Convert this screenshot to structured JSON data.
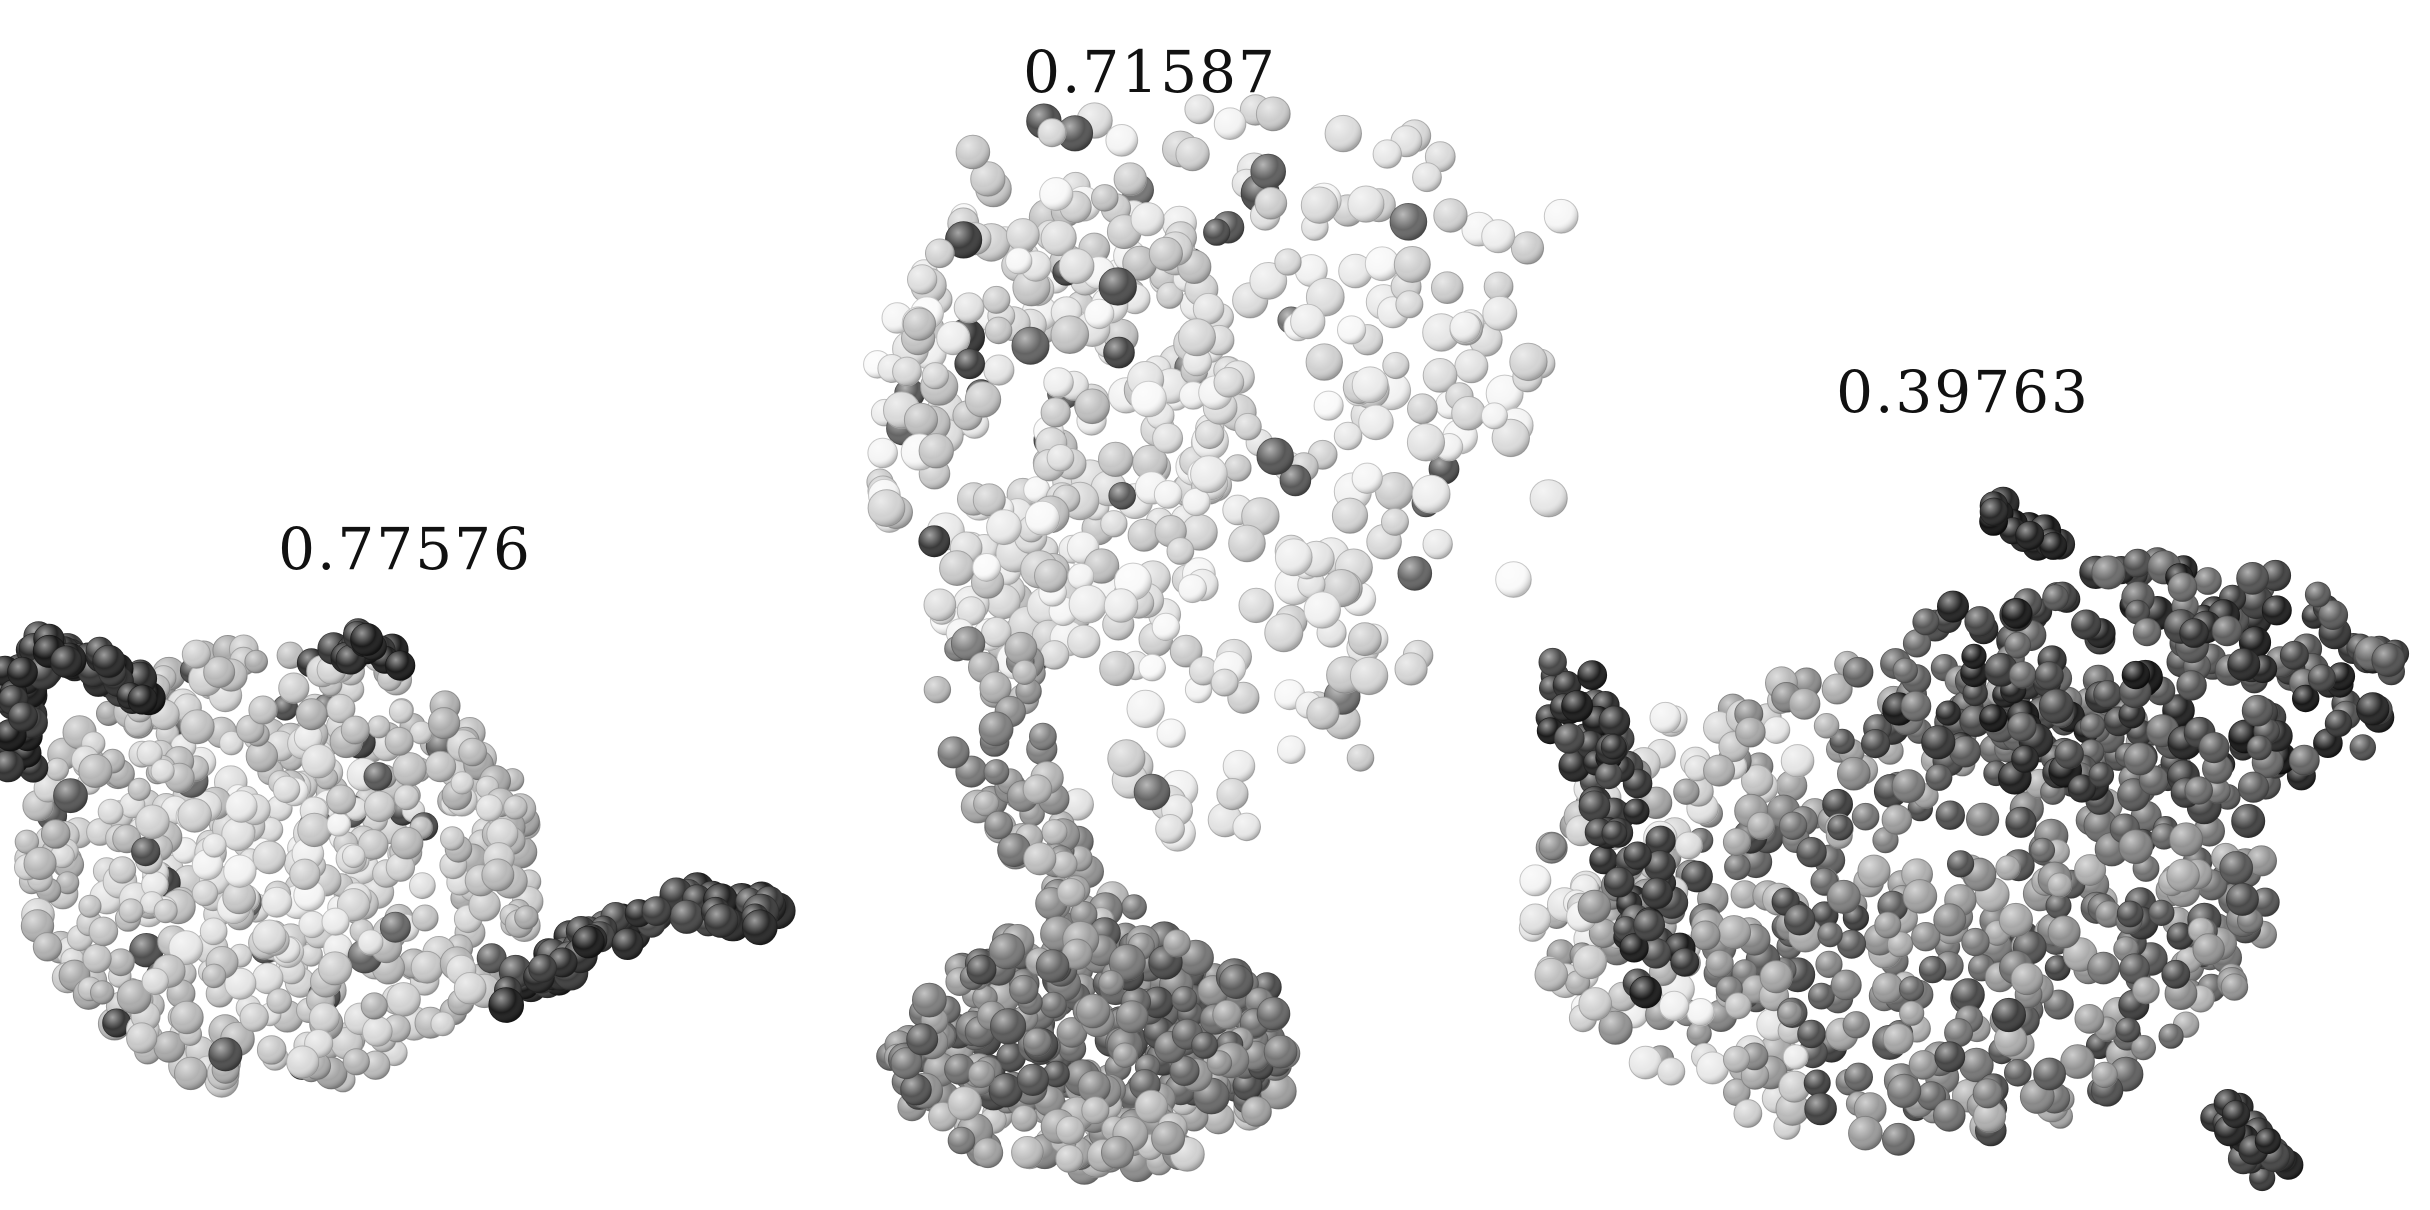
{
  "figures": [
    {
      "id": "teapot",
      "score": "0.77576"
    },
    {
      "id": "bust",
      "score": "0.71587"
    },
    {
      "id": "third",
      "score": "0.39763"
    }
  ]
}
